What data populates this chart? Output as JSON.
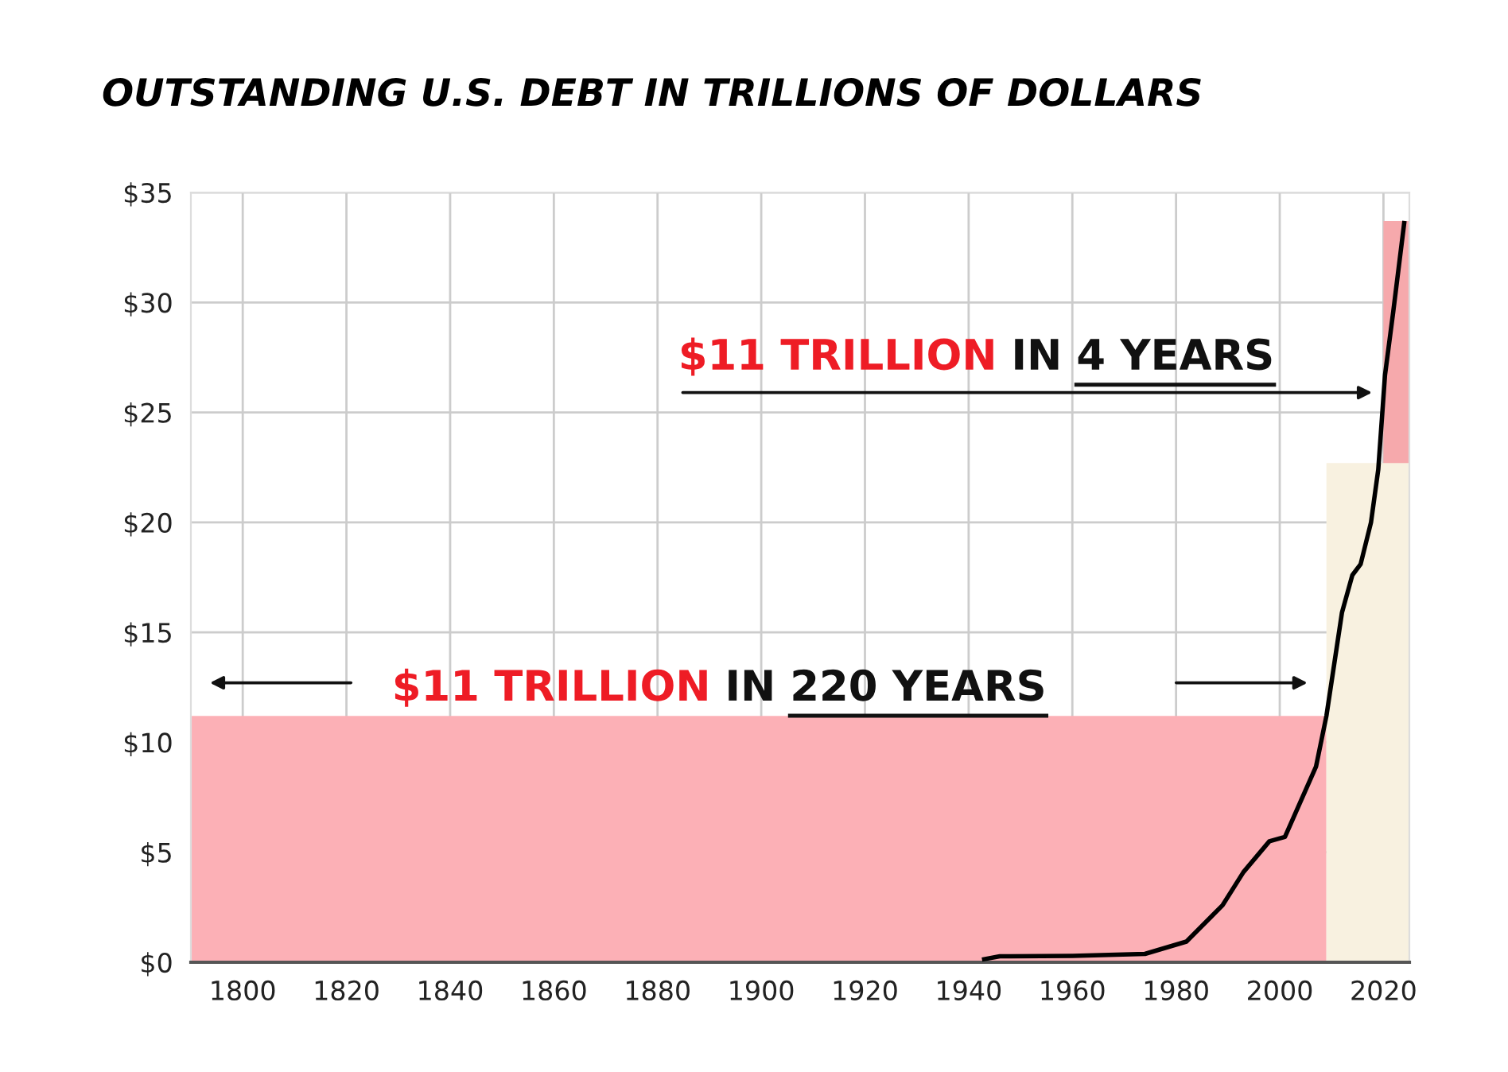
{
  "chart_data": {
    "type": "area",
    "title": "OUTSTANDING U.S. DEBT IN TRILLIONS OF DOLLARS",
    "series": [
      {
        "color": "#fcb0b6",
        "x": [
          1790,
          2009
        ],
        "values": [
          11.2,
          11.2
        ]
      },
      {
        "color": "#f6a9ac",
        "x": [
          2020,
          2025
        ],
        "values": [
          33.7,
          33.7
        ]
      },
      {
        "color": "#f8f1e0",
        "x": [
          2009,
          2025
        ],
        "values": [
          22.7,
          22.7
        ]
      },
      {
        "type": "line",
        "color": "#000000",
        "x": [
          1943,
          1946,
          1960,
          1974,
          1982,
          1989,
          1993,
          1998,
          2001,
          2007,
          2009,
          2012,
          2014,
          2015.6,
          2017.6,
          2019,
          2020.3,
          2021.9,
          2024
        ],
        "values": [
          0.14,
          0.27,
          0.29,
          0.38,
          0.94,
          2.6,
          4.1,
          5.5,
          5.7,
          8.9,
          11.2,
          15.9,
          17.6,
          18.1,
          20.0,
          22.4,
          26.7,
          29.6,
          33.6
        ]
      }
    ],
    "xlim": [
      1790,
      2025
    ],
    "ylim": [
      0,
      35
    ],
    "xticks": [
      1800,
      1820,
      1840,
      1860,
      1880,
      1900,
      1920,
      1940,
      1960,
      1980,
      2000,
      2020
    ],
    "yticks": [
      {
        "value": 0,
        "label": "$0"
      },
      {
        "value": 5,
        "label": "$5"
      },
      {
        "value": 10,
        "label": "$10"
      },
      {
        "value": 15,
        "label": "$15"
      },
      {
        "value": 20,
        "label": "$20"
      },
      {
        "value": 25,
        "label": "$25"
      },
      {
        "value": 30,
        "label": "$30"
      },
      {
        "value": 35,
        "label": "$35"
      }
    ],
    "grid": true,
    "annotations": [
      "$11 TRILLION",
      "IN",
      "220 YEARS",
      "$11 TRILLION",
      "IN",
      "4 YEARS"
    ]
  }
}
